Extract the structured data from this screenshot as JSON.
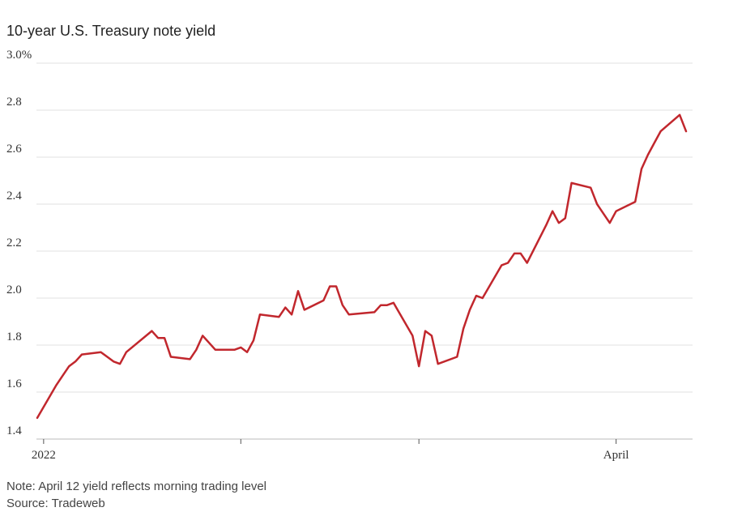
{
  "chart_data": {
    "type": "line",
    "title": "10-year U.S. Treasury note yield",
    "ylim": [
      1.4,
      3.0
    ],
    "y_ticks": [
      {
        "value": 3.0,
        "label": "3.0%"
      },
      {
        "value": 2.8,
        "label": "2.8"
      },
      {
        "value": 2.6,
        "label": "2.6"
      },
      {
        "value": 2.4,
        "label": "2.4"
      },
      {
        "value": 2.2,
        "label": "2.2"
      },
      {
        "value": 2.0,
        "label": "2.0"
      },
      {
        "value": 1.8,
        "label": "1.8"
      },
      {
        "value": 1.6,
        "label": "1.6"
      },
      {
        "value": 1.4,
        "label": "1.4"
      }
    ],
    "x_ticks": [
      {
        "label": "2022",
        "x": "2022-01-01"
      },
      {
        "label": "",
        "x": "2022-02-01"
      },
      {
        "label": "",
        "x": "2022-03-01"
      },
      {
        "label": "April",
        "x": "2022-04-01"
      }
    ],
    "grid": true,
    "series": [
      {
        "color": "#c1272d",
        "x": [
          "2021-12-31",
          "2022-01-03",
          "2022-01-04",
          "2022-01-05",
          "2022-01-06",
          "2022-01-07",
          "2022-01-10",
          "2022-01-11",
          "2022-01-12",
          "2022-01-13",
          "2022-01-14",
          "2022-01-18",
          "2022-01-19",
          "2022-01-20",
          "2022-01-21",
          "2022-01-24",
          "2022-01-25",
          "2022-01-26",
          "2022-01-27",
          "2022-01-28",
          "2022-01-31",
          "2022-02-01",
          "2022-02-02",
          "2022-02-03",
          "2022-02-04",
          "2022-02-07",
          "2022-02-08",
          "2022-02-09",
          "2022-02-10",
          "2022-02-11",
          "2022-02-14",
          "2022-02-15",
          "2022-02-16",
          "2022-02-17",
          "2022-02-18",
          "2022-02-22",
          "2022-02-23",
          "2022-02-24",
          "2022-02-25",
          "2022-02-28",
          "2022-03-01",
          "2022-03-02",
          "2022-03-03",
          "2022-03-04",
          "2022-03-07",
          "2022-03-08",
          "2022-03-09",
          "2022-03-10",
          "2022-03-11",
          "2022-03-14",
          "2022-03-15",
          "2022-03-16",
          "2022-03-17",
          "2022-03-18",
          "2022-03-21",
          "2022-03-22",
          "2022-03-23",
          "2022-03-24",
          "2022-03-25",
          "2022-03-28",
          "2022-03-29",
          "2022-03-30",
          "2022-03-31",
          "2022-04-01",
          "2022-04-04",
          "2022-04-05",
          "2022-04-06",
          "2022-04-07",
          "2022-04-08",
          "2022-04-11",
          "2022-04-12"
        ],
        "y": [
          1.49,
          1.63,
          1.67,
          1.71,
          1.73,
          1.76,
          1.77,
          1.75,
          1.73,
          1.72,
          1.77,
          1.86,
          1.83,
          1.83,
          1.75,
          1.74,
          1.78,
          1.84,
          1.81,
          1.78,
          1.78,
          1.79,
          1.77,
          1.82,
          1.93,
          1.92,
          1.96,
          1.93,
          2.03,
          1.95,
          1.99,
          2.05,
          2.05,
          1.97,
          1.93,
          1.94,
          1.97,
          1.97,
          1.98,
          1.84,
          1.71,
          1.86,
          1.84,
          1.72,
          1.75,
          1.87,
          1.95,
          2.01,
          2.0,
          2.14,
          2.15,
          2.19,
          2.19,
          2.15,
          2.31,
          2.37,
          2.32,
          2.34,
          2.49,
          2.47,
          2.4,
          2.36,
          2.32,
          2.37,
          2.41,
          2.55,
          2.61,
          2.66,
          2.71,
          2.78,
          2.71
        ]
      }
    ]
  },
  "footer": {
    "note": "Note: April 12 yield reflects morning trading level",
    "source": "Source: Tradeweb"
  }
}
